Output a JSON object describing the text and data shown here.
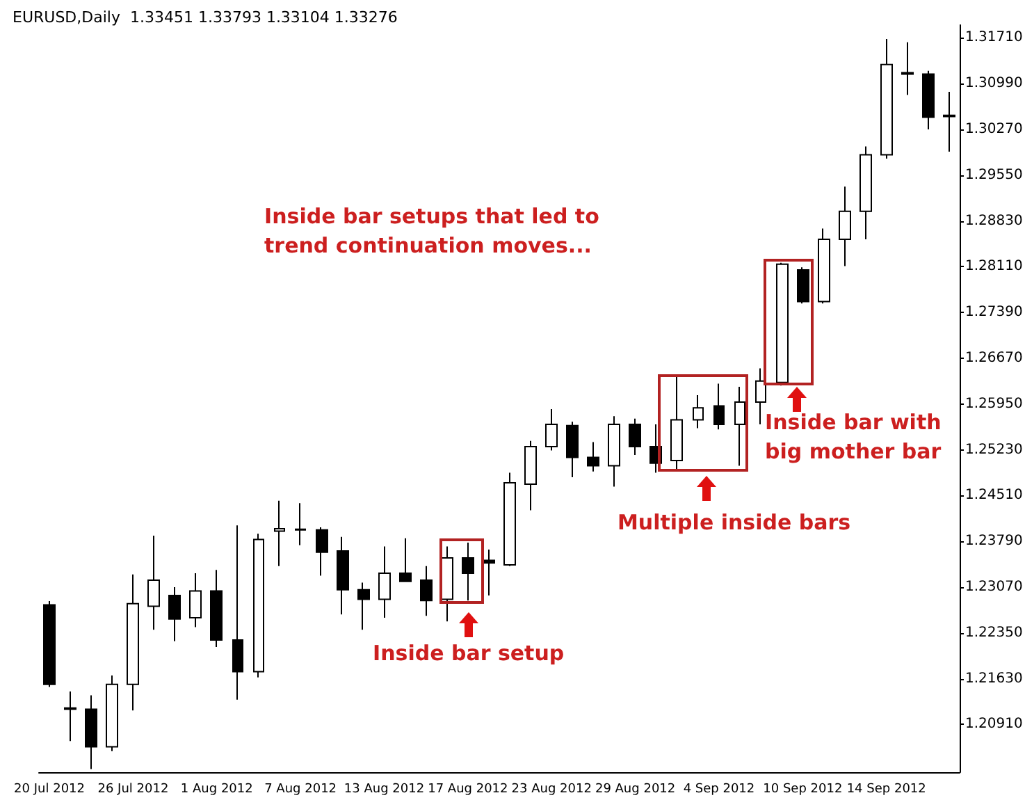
{
  "chart_data": {
    "type": "candlestick",
    "title": "EURUSD,Daily  1.33451 1.33793 1.33104 1.33276",
    "categories": [
      "20 Jul 2012",
      null,
      null,
      null,
      "26 Jul 2012",
      null,
      null,
      null,
      "1 Aug 2012",
      null,
      null,
      null,
      "7 Aug 2012",
      null,
      null,
      null,
      "13 Aug 2012",
      null,
      null,
      null,
      "17 Aug 2012",
      null,
      null,
      null,
      "23 Aug 2012",
      null,
      null,
      null,
      "29 Aug 2012",
      null,
      null,
      null,
      "4 Sep 2012",
      null,
      null,
      null,
      "10 Sep 2012",
      null,
      null,
      null,
      "14 Sep 2012",
      null,
      null,
      null
    ],
    "ohlc": [
      [
        1.2279,
        1.2285,
        1.215,
        1.2154
      ],
      [
        1.2117,
        1.2143,
        1.2065,
        1.2115
      ],
      [
        1.2115,
        1.2137,
        1.2021,
        1.2056
      ],
      [
        1.2056,
        1.2168,
        1.2049,
        1.2154
      ],
      [
        1.2154,
        1.2327,
        1.2113,
        1.2281
      ],
      [
        1.2277,
        1.2388,
        1.224,
        1.2318
      ],
      [
        1.2294,
        1.2307,
        1.2222,
        1.2257
      ],
      [
        1.2259,
        1.2329,
        1.2244,
        1.2301
      ],
      [
        1.2301,
        1.2334,
        1.2213,
        1.2224
      ],
      [
        1.2224,
        1.2404,
        1.213,
        1.2174
      ],
      [
        1.2174,
        1.2391,
        1.2165,
        1.2382
      ],
      [
        1.2395,
        1.2443,
        1.234,
        1.2399
      ],
      [
        1.2398,
        1.2439,
        1.2373,
        1.2397
      ],
      [
        1.2397,
        1.2401,
        1.2325,
        1.2362
      ],
      [
        1.2364,
        1.2386,
        1.2264,
        1.2303
      ],
      [
        1.2303,
        1.2314,
        1.224,
        1.2288
      ],
      [
        1.2288,
        1.2371,
        1.2259,
        1.2329
      ],
      [
        1.2329,
        1.2384,
        1.2315,
        1.2316
      ],
      [
        1.2318,
        1.234,
        1.2262,
        1.2286
      ],
      [
        1.2288,
        1.2371,
        1.2253,
        1.2353
      ],
      [
        1.2353,
        1.2377,
        1.2286,
        1.2329
      ],
      [
        1.2349,
        1.2366,
        1.2294,
        1.2345
      ],
      [
        1.2342,
        1.2487,
        1.234,
        1.2471
      ],
      [
        1.2469,
        1.2537,
        1.2428,
        1.2528
      ],
      [
        1.2528,
        1.2587,
        1.2522,
        1.2563
      ],
      [
        1.2561,
        1.2567,
        1.248,
        1.2511
      ],
      [
        1.2511,
        1.2535,
        1.2489,
        1.2498
      ],
      [
        1.2498,
        1.2576,
        1.2465,
        1.2563
      ],
      [
        1.2563,
        1.2572,
        1.2515,
        1.2528
      ],
      [
        1.2528,
        1.2563,
        1.2487,
        1.2502
      ],
      [
        1.2506,
        1.2638,
        1.2493,
        1.257
      ],
      [
        1.257,
        1.2609,
        1.2557,
        1.2589
      ],
      [
        1.2592,
        1.2627,
        1.2555,
        1.2563
      ],
      [
        1.2563,
        1.2622,
        1.2498,
        1.2598
      ],
      [
        1.2598,
        1.2651,
        1.2563,
        1.2631
      ],
      [
        1.2629,
        1.2817,
        1.2624,
        1.2815
      ],
      [
        1.2806,
        1.281,
        1.2753,
        1.2756
      ],
      [
        1.2756,
        1.2871,
        1.2753,
        1.2854
      ],
      [
        1.2854,
        1.2937,
        1.2812,
        1.2898
      ],
      [
        1.2898,
        1.3,
        1.2854,
        1.2987
      ],
      [
        1.2987,
        1.3169,
        1.2981,
        1.3129
      ],
      [
        1.3116,
        1.3164,
        1.3081,
        1.3114
      ],
      [
        1.3114,
        1.3119,
        1.3027,
        1.3046
      ],
      [
        1.3049,
        1.3086,
        1.2992,
        1.3047
      ]
    ],
    "ylim": [
      1.2016,
      1.3191
    ],
    "yticks": [
      {
        "value": 1.2091,
        "label": "1.20910"
      },
      {
        "value": 1.2163,
        "label": "1.21630"
      },
      {
        "value": 1.2235,
        "label": "1.22350"
      },
      {
        "value": 1.2307,
        "label": "1.23070"
      },
      {
        "value": 1.2379,
        "label": "1.23790"
      },
      {
        "value": 1.2451,
        "label": "1.24510"
      },
      {
        "value": 1.2523,
        "label": "1.25230"
      },
      {
        "value": 1.2595,
        "label": "1.25950"
      },
      {
        "value": 1.2667,
        "label": "1.26670"
      },
      {
        "value": 1.2739,
        "label": "1.27390"
      },
      {
        "value": 1.2811,
        "label": "1.28110"
      },
      {
        "value": 1.2883,
        "label": "1.28830"
      },
      {
        "value": 1.2955,
        "label": "1.29550"
      },
      {
        "value": 1.3027,
        "label": "1.30270"
      },
      {
        "value": 1.3099,
        "label": "1.30990"
      },
      {
        "value": 1.3171,
        "label": "1.31710"
      }
    ],
    "annotations": [
      "Inside bar setups that led to trend continuation moves...",
      "Inside bar setup",
      "Multiple inside bars",
      "Inside bar with big mother bar"
    ],
    "grid": false
  }
}
